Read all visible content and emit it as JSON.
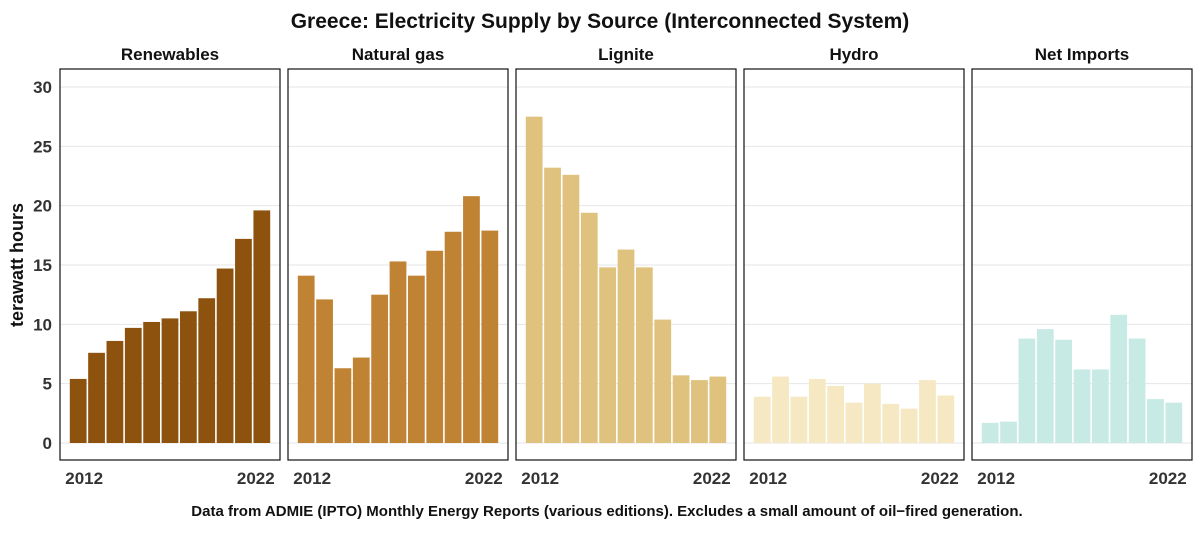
{
  "chart_data": {
    "type": "bar",
    "title": "Greece: Electricity Supply by Source (Interconnected System)",
    "ylabel": "terawatt hours",
    "caption": "Data from ADMIE (IPTO) Monthly Energy Reports (various editions). Excludes a small amount of oil−fired generation.",
    "ylim": [
      0,
      31
    ],
    "yticks": [
      0,
      5,
      10,
      15,
      20,
      25,
      30
    ],
    "x": [
      2012,
      2013,
      2014,
      2015,
      2016,
      2017,
      2018,
      2019,
      2020,
      2021,
      2022
    ],
    "xtick_labels": [
      "2012",
      "2022"
    ],
    "grid": true,
    "facets": [
      {
        "name": "Renewables",
        "color": "#8c520e",
        "values": [
          5.4,
          7.6,
          8.6,
          9.7,
          10.2,
          10.5,
          11.1,
          12.2,
          14.7,
          17.2,
          19.6
        ]
      },
      {
        "name": "Natural gas",
        "color": "#c08233",
        "values": [
          14.1,
          12.1,
          6.3,
          7.2,
          12.5,
          15.3,
          14.1,
          16.2,
          17.8,
          20.8,
          17.9
        ]
      },
      {
        "name": "Lignite",
        "color": "#dfc27d",
        "values": [
          27.5,
          23.2,
          22.6,
          19.4,
          14.8,
          16.3,
          14.8,
          10.4,
          5.7,
          5.3,
          5.6
        ]
      },
      {
        "name": "Hydro",
        "color": "#f6e8c3",
        "values": [
          3.9,
          5.6,
          3.9,
          5.4,
          4.8,
          3.4,
          5.0,
          3.3,
          2.9,
          5.3,
          4.0
        ]
      },
      {
        "name": "Net Imports",
        "color": "#c7eae5",
        "values": [
          1.7,
          1.8,
          8.8,
          9.6,
          8.7,
          6.2,
          6.2,
          10.8,
          8.8,
          3.7,
          3.4
        ]
      }
    ]
  }
}
